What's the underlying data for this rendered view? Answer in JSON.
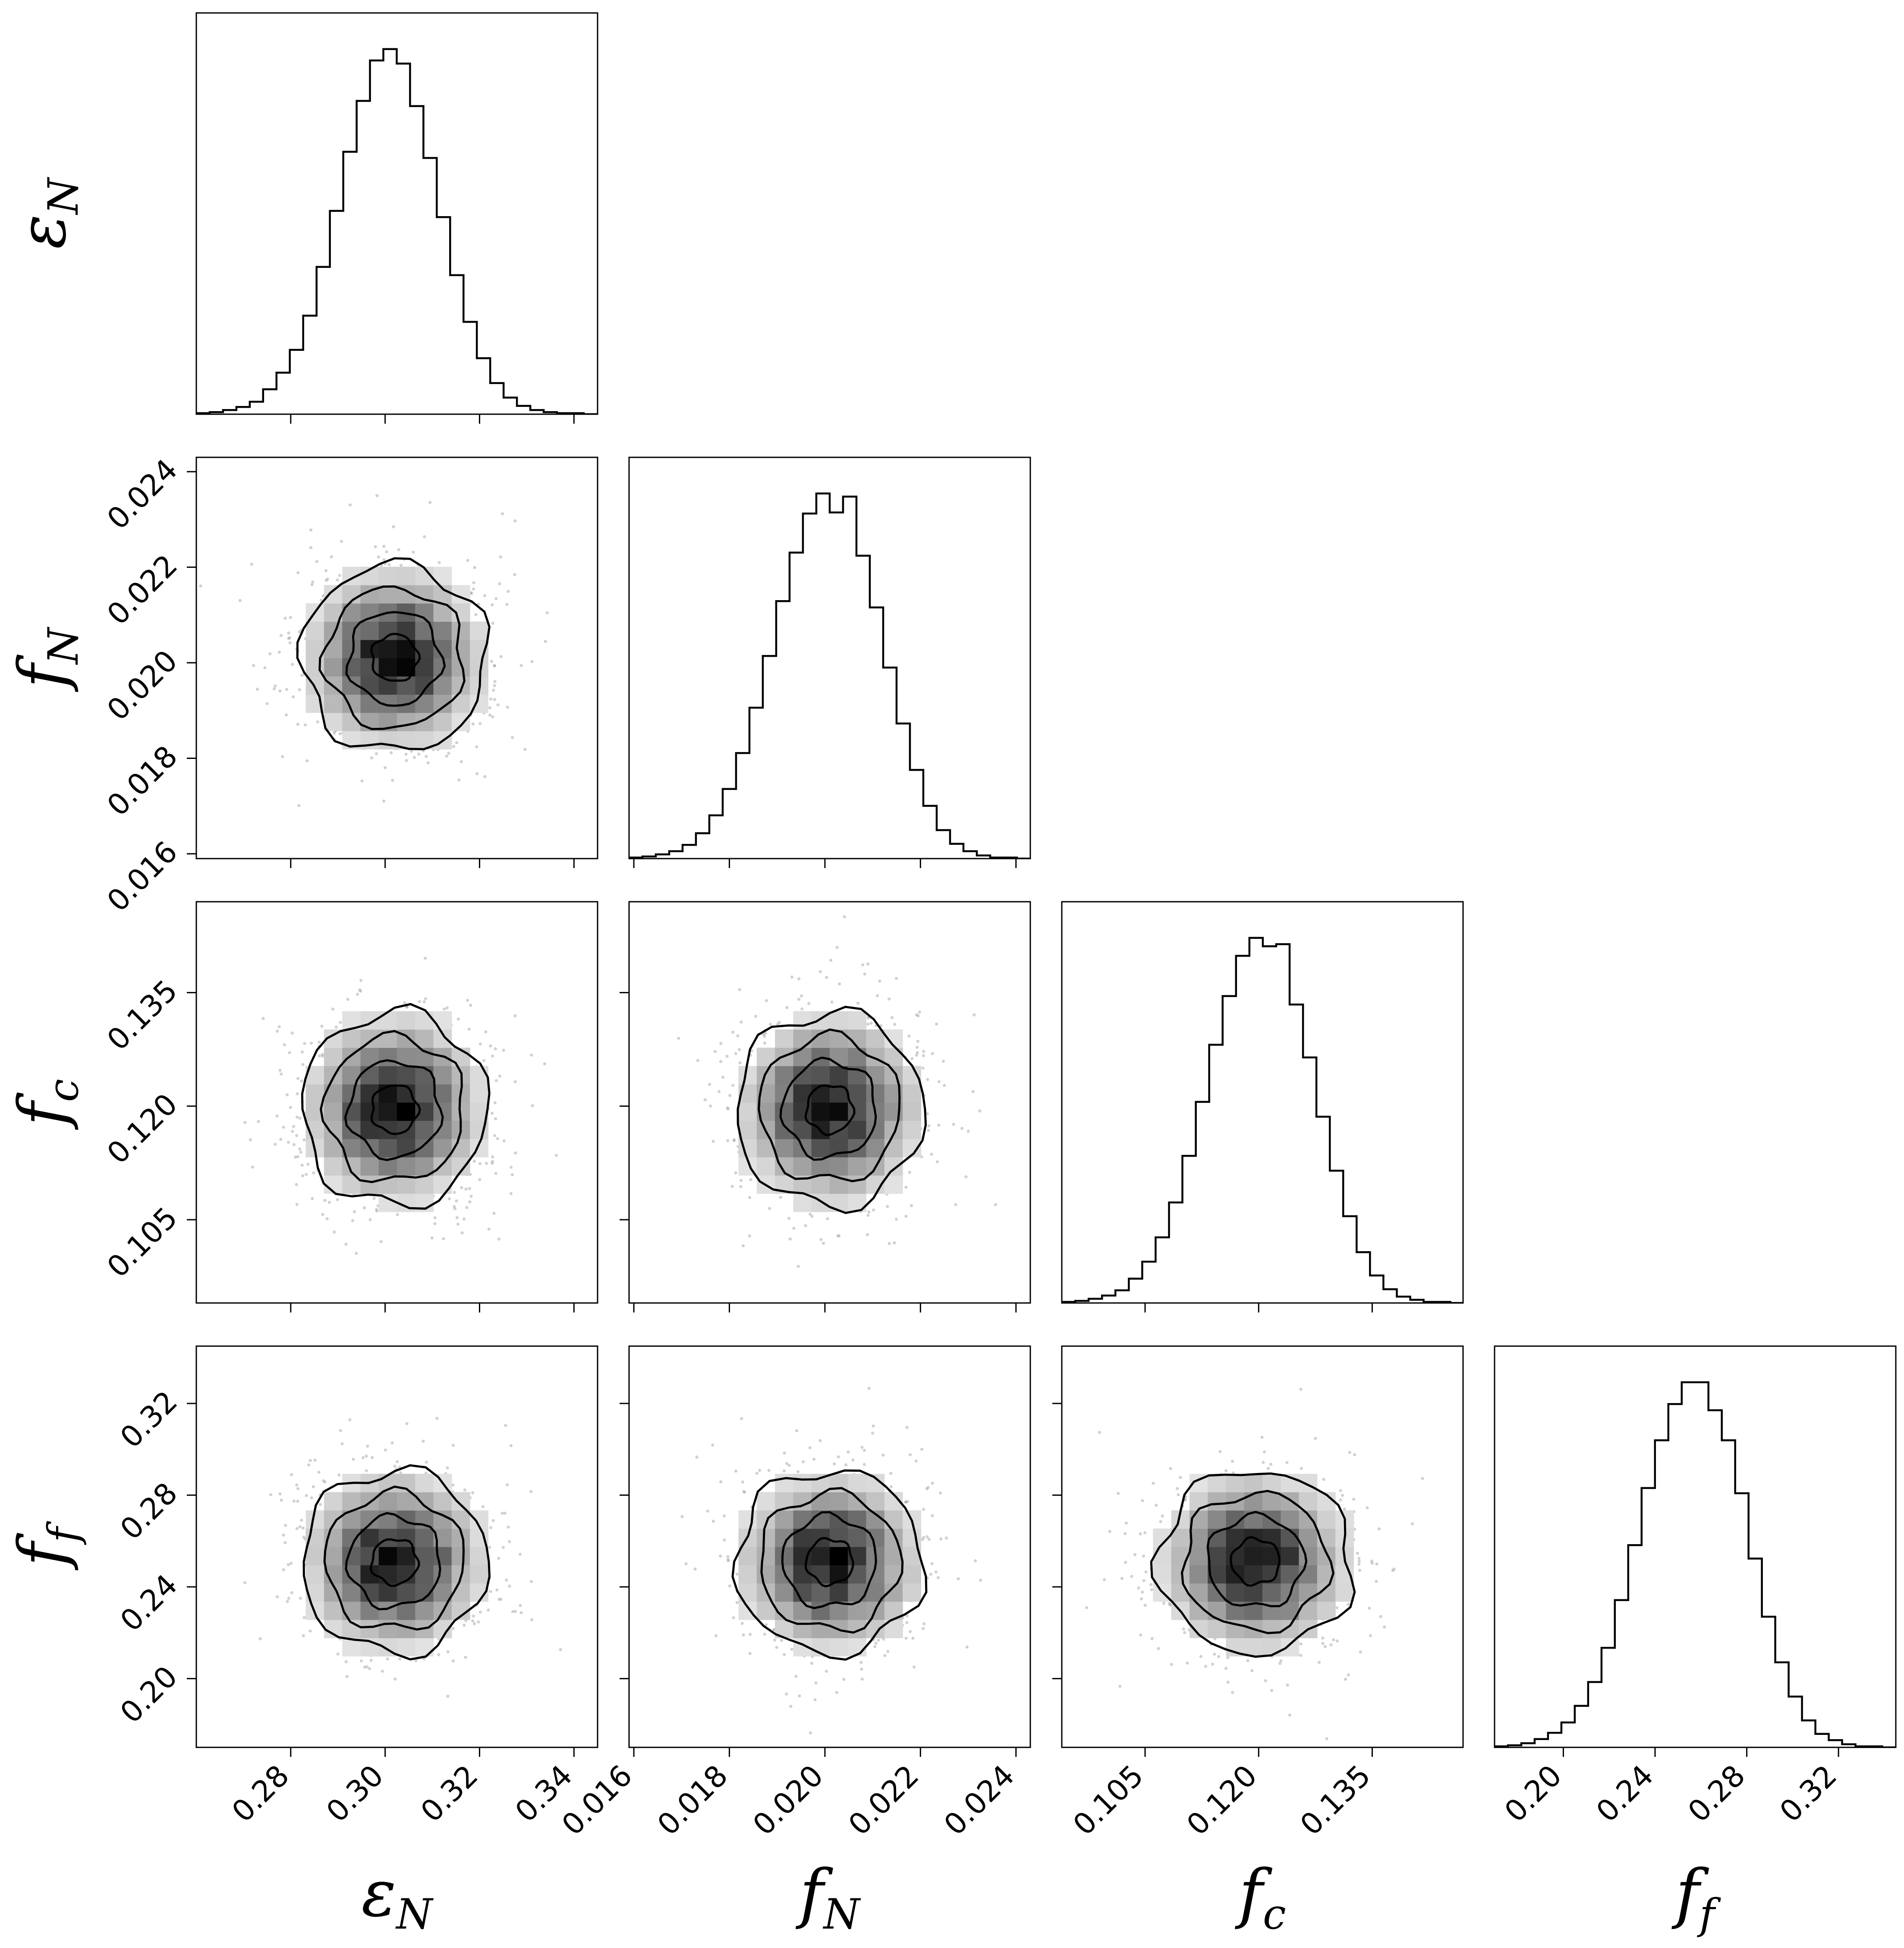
{
  "chart_data": {
    "type": "corner",
    "title": "",
    "parameters": [
      {
        "key": "eps_N",
        "symbol": "ε",
        "sub": "N",
        "range": [
          0.26,
          0.345
        ],
        "ticks": [
          0.28,
          0.3,
          0.32,
          0.34
        ],
        "tick_labels": [
          "0.28",
          "0.30",
          "0.32",
          "0.34"
        ]
      },
      {
        "key": "f_N",
        "symbol": "f",
        "sub": "N",
        "range": [
          0.0159,
          0.0243
        ],
        "ticks": [
          0.016,
          0.018,
          0.02,
          0.022,
          0.024
        ],
        "tick_labels": [
          "0.016",
          "0.018",
          "0.020",
          "0.022",
          "0.024"
        ]
      },
      {
        "key": "f_c",
        "symbol": "f",
        "sub": "c",
        "range": [
          0.094,
          0.147
        ],
        "ticks": [
          0.105,
          0.12,
          0.135
        ],
        "tick_labels": [
          "0.105",
          "0.120",
          "0.135"
        ]
      },
      {
        "key": "f_f",
        "symbol": "f",
        "sub": "f",
        "range": [
          0.17,
          0.345
        ],
        "ticks": [
          0.2,
          0.24,
          0.28,
          0.32
        ],
        "tick_labels": [
          "0.20",
          "0.24",
          "0.28",
          "0.32"
        ]
      }
    ],
    "histograms": [
      {
        "param": "eps_N",
        "bin_start": 0.26,
        "bin_width": 0.00283,
        "counts": [
          1,
          2,
          4,
          7,
          12,
          24,
          40,
          62,
          95,
          142,
          196,
          253,
          302,
          341,
          352,
          338,
          297,
          247,
          190,
          134,
          89,
          54,
          30,
          16,
          8,
          4,
          2,
          1,
          1,
          0
        ]
      },
      {
        "param": "f_N",
        "bin_start": 0.0159,
        "bin_width": 0.00028,
        "counts": [
          1,
          2,
          4,
          7,
          13,
          24,
          41,
          66,
          100,
          143,
          192,
          244,
          290,
          327,
          346,
          328,
          343,
          287,
          238,
          181,
          128,
          84,
          50,
          27,
          14,
          7,
          3,
          1,
          1,
          0
        ]
      },
      {
        "param": "f_c",
        "bin_start": 0.094,
        "bin_width": 0.00177,
        "counts": [
          1,
          2,
          4,
          7,
          12,
          23,
          39,
          62,
          95,
          139,
          190,
          244,
          290,
          328,
          345,
          337,
          339,
          282,
          232,
          176,
          125,
          82,
          48,
          26,
          13,
          6,
          3,
          1,
          1,
          0
        ]
      },
      {
        "param": "f_f",
        "bin_start": 0.17,
        "bin_width": 0.00583,
        "counts": [
          1,
          2,
          4,
          8,
          14,
          24,
          40,
          63,
          96,
          142,
          195,
          250,
          296,
          331,
          352,
          352,
          325,
          296,
          245,
          182,
          126,
          82,
          49,
          26,
          13,
          7,
          3,
          1,
          1,
          0
        ]
      }
    ],
    "posterior": {
      "means": {
        "eps_N": 0.302,
        "f_N": 0.0201,
        "f_c": 0.1196,
        "f_f": 0.251
      },
      "std": {
        "eps_N": 0.0098,
        "f_N": 0.00098,
        "f_c": 0.0064,
        "f_f": 0.0199
      },
      "contour_levels_sigma": [
        0.5,
        1.0,
        1.5,
        2.0
      ]
    },
    "sample_points": 900,
    "grid": false,
    "legend": "none"
  }
}
